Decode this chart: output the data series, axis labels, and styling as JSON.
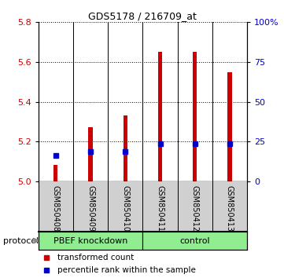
{
  "title": "GDS5178 / 216709_at",
  "samples": [
    "GSM850408",
    "GSM850409",
    "GSM850410",
    "GSM850411",
    "GSM850412",
    "GSM850413"
  ],
  "group_labels": [
    "PBEF knockdown",
    "control"
  ],
  "group_split": 3,
  "bar_bottom": 5.0,
  "bar_tops": [
    5.08,
    5.27,
    5.33,
    5.65,
    5.65,
    5.55
  ],
  "percentile_values": [
    5.13,
    5.15,
    5.15,
    5.19,
    5.19,
    5.19
  ],
  "ylim": [
    5.0,
    5.8
  ],
  "yticks_left": [
    5.0,
    5.2,
    5.4,
    5.6,
    5.8
  ],
  "yticks_right": [
    0,
    25,
    50,
    75,
    100
  ],
  "bar_color": "#CC0000",
  "percentile_color": "#0000CC",
  "left_axis_color": "#CC0000",
  "right_axis_color": "#0000CC",
  "bar_width": 0.12,
  "legend_items": [
    "transformed count",
    "percentile rank within the sample"
  ],
  "protocol_label": "protocol",
  "sample_label_bg": "#D0D0D0",
  "group_bg": "#90EE90",
  "title_fontsize": 9,
  "tick_fontsize": 8,
  "sample_fontsize": 7,
  "group_fontsize": 8,
  "legend_fontsize": 7.5
}
